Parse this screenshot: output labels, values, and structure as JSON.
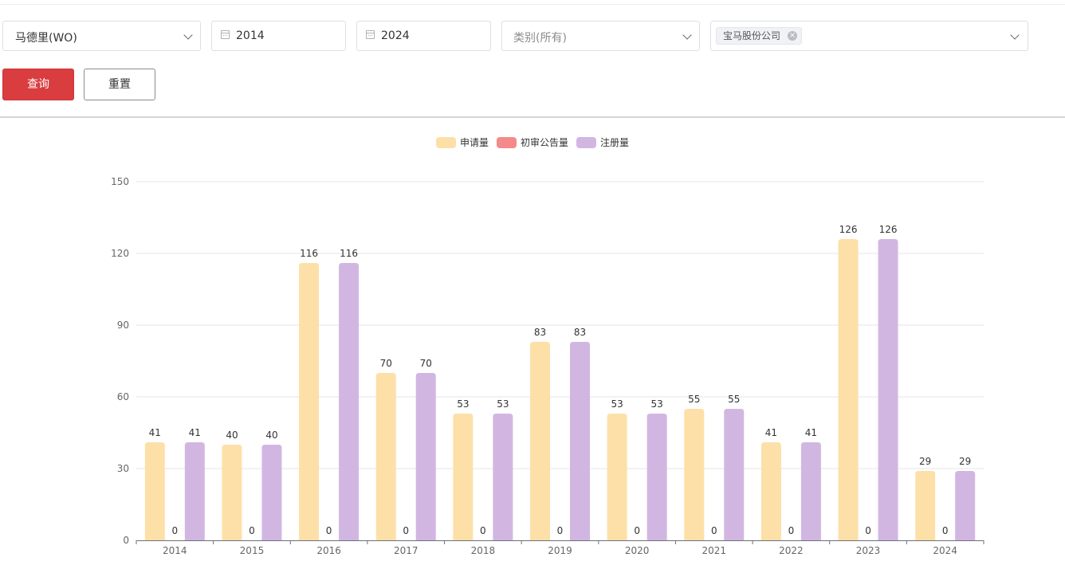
{
  "filters": {
    "region": {
      "value": "马德里(WO)"
    },
    "start_year": {
      "value": "2014"
    },
    "end_year": {
      "value": "2024"
    },
    "category": {
      "placeholder": "类别(所有)"
    },
    "applicant": {
      "tags": [
        "宝马股份公司"
      ]
    }
  },
  "actions": {
    "query_label": "查询",
    "reset_label": "重置"
  },
  "chart_data": {
    "type": "bar",
    "categories": [
      "2014",
      "2015",
      "2016",
      "2017",
      "2018",
      "2019",
      "2020",
      "2021",
      "2022",
      "2023",
      "2024"
    ],
    "series": [
      {
        "name": "申请量",
        "color": "#fde0a8",
        "values": [
          41,
          40,
          116,
          70,
          53,
          83,
          53,
          55,
          41,
          126,
          29
        ]
      },
      {
        "name": "初审公告量",
        "color": "#f58a8a",
        "values": [
          0,
          0,
          0,
          0,
          0,
          0,
          0,
          0,
          0,
          0,
          0
        ]
      },
      {
        "name": "注册量",
        "color": "#d2b6e2",
        "values": [
          41,
          40,
          116,
          70,
          53,
          83,
          53,
          55,
          41,
          126,
          29
        ]
      }
    ],
    "ylim": [
      0,
      150
    ],
    "yticks": [
      0,
      30,
      60,
      90,
      120,
      150
    ],
    "grid": true,
    "legend_position": "top-center",
    "data_labels": true
  }
}
